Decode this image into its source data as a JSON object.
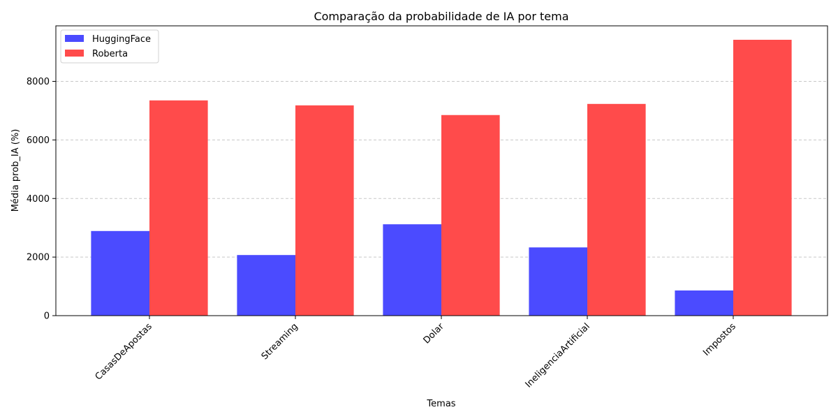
{
  "chart_data": {
    "type": "bar",
    "title": "Comparação da probabilidade de IA por tema",
    "xlabel": "Temas",
    "ylabel": "Média prob_IA (%)",
    "categories": [
      "CasasDeApostas",
      "Streaming",
      "Dolar",
      "IneligenciaArtificial",
      "Impostos"
    ],
    "series": [
      {
        "name": "HuggingFace",
        "values": [
          2890,
          2070,
          3120,
          2330,
          860
        ],
        "color": "#4b4bff"
      },
      {
        "name": "Roberta",
        "values": [
          7350,
          7180,
          6850,
          7230,
          9420
        ],
        "color": "#ff4b4b"
      }
    ],
    "yticks": [
      0,
      2000,
      4000,
      6000,
      8000
    ],
    "ylim": [
      0,
      9896
    ],
    "grid": "y-dashed",
    "legend_position": "top-left"
  }
}
